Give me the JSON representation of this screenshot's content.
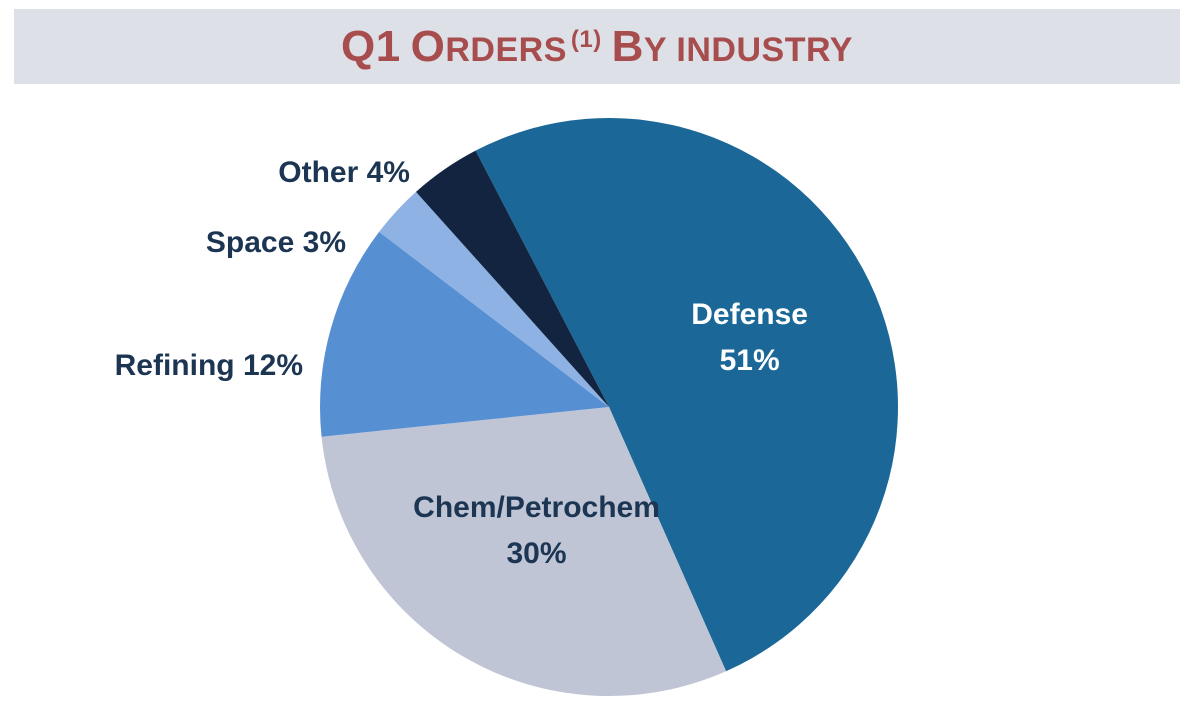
{
  "title": {
    "w1_big": "Q1",
    "w2_big": "O",
    "w2_small": "RDERS",
    "footnote": "(1)",
    "w3_big": "B",
    "w3_small": "Y INDUSTRY"
  },
  "chart_data": {
    "type": "pie",
    "title": "Q1 Orders (1) By industry",
    "slices": [
      {
        "name": "Defense",
        "value": 51,
        "label_lines": [
          "Defense",
          "51%"
        ],
        "color": "#1b6898",
        "label_color": "#ffffff",
        "label_inside": true
      },
      {
        "name": "Chem/Petrochem",
        "value": 30,
        "label_lines": [
          "Chem/Petrochem",
          "30%"
        ],
        "color": "#bfc5d4",
        "label_color": "#1c3553",
        "label_inside": true
      },
      {
        "name": "Refining",
        "value": 12,
        "label_lines": [
          "Refining 12%"
        ],
        "color": "#578fd3",
        "label_color": "#1c3553",
        "label_inside": false
      },
      {
        "name": "Space",
        "value": 3,
        "label_lines": [
          "Space 3%"
        ],
        "color": "#8db2e3",
        "label_color": "#1c3553",
        "label_inside": false
      },
      {
        "name": "Other",
        "value": 4,
        "label_lines": [
          "Other 4%"
        ],
        "color": "#12243f",
        "label_color": "#1c3553",
        "label_inside": false
      }
    ],
    "start_angle_deg": -27.5,
    "direction": "clockwise",
    "legend": "none"
  }
}
